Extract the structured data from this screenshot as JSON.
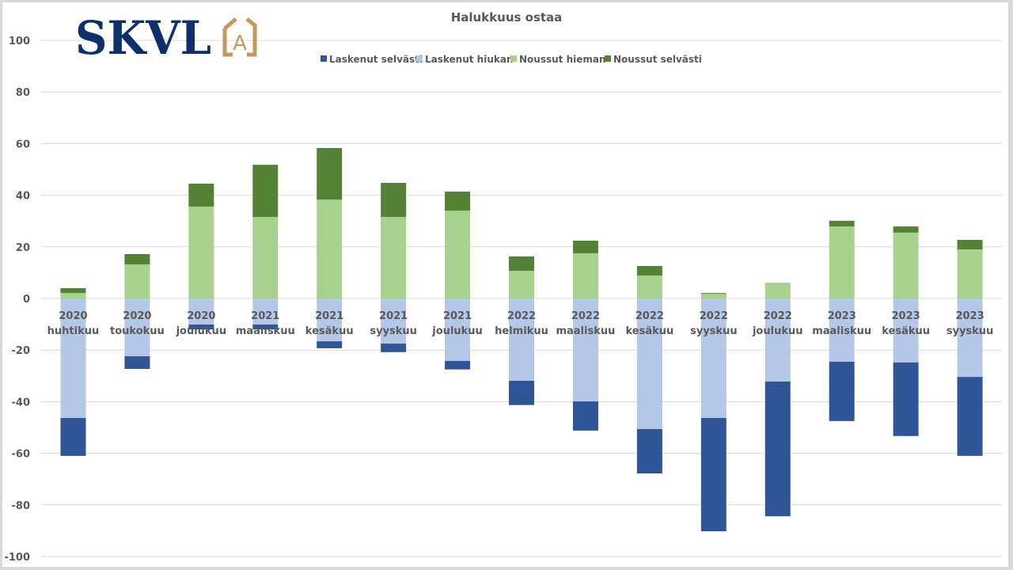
{
  "logo": {
    "text": "SKVL",
    "badge_letter": "A",
    "primary_color": "#0f2f6b",
    "accent_color": "#c49a5c"
  },
  "chart_data": {
    "type": "bar",
    "stacked": true,
    "title": "Halukkuus ostaa",
    "xlabel": "",
    "ylabel": "",
    "ylim": [
      -100,
      100
    ],
    "yticks": [
      100,
      80,
      60,
      40,
      20,
      0,
      -20,
      -40,
      -60,
      -80,
      -100
    ],
    "grid": true,
    "legend_position": "top",
    "categories": [
      {
        "year": "2020",
        "month": "huhtikuu"
      },
      {
        "year": "2020",
        "month": "toukokuu"
      },
      {
        "year": "2020",
        "month": "joulukuu"
      },
      {
        "year": "2021",
        "month": "maaliskuu"
      },
      {
        "year": "2021",
        "month": "kesäkuu"
      },
      {
        "year": "2021",
        "month": "syyskuu"
      },
      {
        "year": "2021",
        "month": "joulukuu"
      },
      {
        "year": "2022",
        "month": "helmikuu"
      },
      {
        "year": "2022",
        "month": "maaliskuu"
      },
      {
        "year": "2022",
        "month": "kesäkuu"
      },
      {
        "year": "2022",
        "month": "syyskuu"
      },
      {
        "year": "2022",
        "month": "joulukuu"
      },
      {
        "year": "2023",
        "month": "maaliskuu"
      },
      {
        "year": "2023",
        "month": "kesäkuu"
      },
      {
        "year": "2023",
        "month": "syyskuu"
      }
    ],
    "series": [
      {
        "name": "Laskenut selvästi",
        "color": "#2f5597",
        "direction": "negative",
        "values": [
          -14.7,
          -4.9,
          -1.9,
          -1.9,
          -2.7,
          -3.3,
          -3.3,
          -9.4,
          -11.3,
          -17.2,
          -43.9,
          -52.2,
          -23.0,
          -28.5,
          -30.6
        ]
      },
      {
        "name": "Laskenut hiukan",
        "color": "#b4c7e7",
        "direction": "negative",
        "values": [
          -46.3,
          -22.4,
          -10.1,
          -10.1,
          -16.6,
          -17.5,
          -24.2,
          -31.9,
          -39.9,
          -50.6,
          -46.3,
          -32.2,
          -24.5,
          -24.8,
          -30.4
        ]
      },
      {
        "name": "Noussut hieman",
        "color": "#a9d18e",
        "direction": "positive",
        "values": [
          2.1,
          13.2,
          35.6,
          31.6,
          38.3,
          31.6,
          34.0,
          10.7,
          17.5,
          8.9,
          1.8,
          6.1,
          27.9,
          25.5,
          19.0
        ]
      },
      {
        "name": "Noussut selvästi",
        "color": "#548235",
        "direction": "positive",
        "values": [
          1.9,
          4.0,
          8.9,
          20.2,
          20.0,
          13.2,
          7.4,
          5.6,
          4.9,
          3.7,
          0.3,
          0.0,
          2.2,
          2.4,
          3.7
        ]
      }
    ]
  }
}
